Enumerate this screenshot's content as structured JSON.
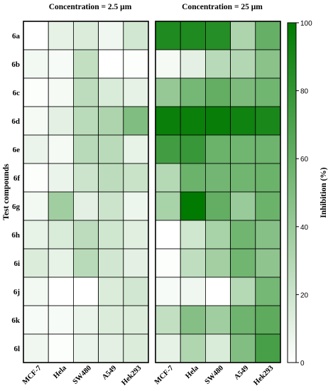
{
  "chart_data": {
    "type": "heatmap",
    "ylabel": "Test compounds",
    "colorbar": {
      "label": "Inhibition (%)",
      "range": [
        0,
        100
      ],
      "ticks": [
        "0",
        "20",
        "40",
        "60",
        "80",
        "100"
      ],
      "color_low": "#ffffff",
      "color_high": "#007a00"
    },
    "rows": [
      "6a",
      "6b",
      "6c",
      "6d",
      "6e",
      "6f",
      "6g",
      "6h",
      "6i",
      "6j",
      "6k",
      "6l"
    ],
    "columns": [
      "MCF-7",
      "Hela",
      "SW480",
      "A549",
      "Hek293"
    ],
    "panels": [
      {
        "title": "Concentration = 2.5 μm",
        "values": [
          [
            0,
            10,
            14,
            6,
            18
          ],
          [
            5,
            3,
            24,
            0,
            1
          ],
          [
            1,
            4,
            26,
            15,
            10
          ],
          [
            4,
            11,
            27,
            32,
            50
          ],
          [
            8,
            4,
            28,
            27,
            9
          ],
          [
            1,
            8,
            20,
            26,
            21
          ],
          [
            5,
            37,
            11,
            20,
            7
          ],
          [
            9,
            15,
            26,
            19,
            12
          ],
          [
            14,
            9,
            28,
            18,
            11
          ],
          [
            5,
            0,
            0,
            14,
            18
          ],
          [
            3,
            3,
            8,
            14,
            14
          ],
          [
            6,
            1,
            8,
            11,
            14
          ]
        ]
      },
      {
        "title": "Concentration = 25 μm",
        "values": [
          [
            88,
            88,
            85,
            32,
            60
          ],
          [
            4,
            11,
            28,
            30,
            46
          ],
          [
            41,
            54,
            61,
            51,
            56
          ],
          [
            96,
            96,
            97,
            94,
            90
          ],
          [
            74,
            78,
            58,
            56,
            57
          ],
          [
            29,
            58,
            55,
            56,
            58
          ],
          [
            34,
            100,
            61,
            40,
            58
          ],
          [
            0,
            19,
            34,
            56,
            47
          ],
          [
            1,
            25,
            36,
            56,
            44
          ],
          [
            3,
            6,
            0,
            29,
            54
          ],
          [
            24,
            48,
            37,
            57,
            63
          ],
          [
            10,
            31,
            15,
            49,
            72
          ]
        ]
      }
    ]
  }
}
